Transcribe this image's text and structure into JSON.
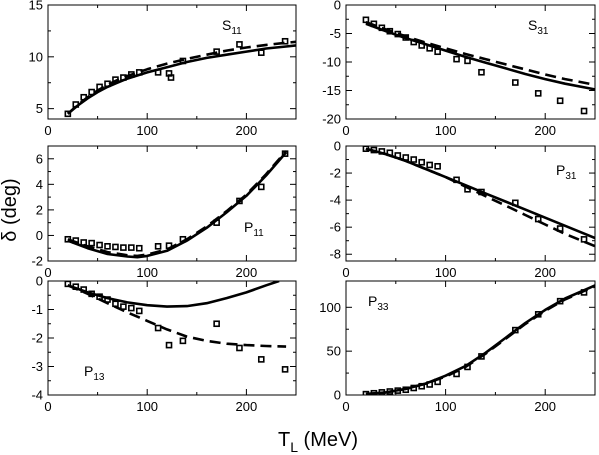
{
  "figure": {
    "xlabel_main": "T",
    "xlabel_sub": "L",
    "xlabel_units": " (MeV)",
    "ylabel": "δ (deg)"
  },
  "chart_data": [
    {
      "type": "line",
      "panel": "S11",
      "label_main": "S",
      "label_sub": "11",
      "xlim": [
        0,
        250
      ],
      "ylim": [
        4,
        15
      ],
      "xticks": [
        0,
        100,
        200
      ],
      "yticks": [
        5,
        10,
        15
      ],
      "ytick_labels": [
        "5",
        "10",
        "15"
      ],
      "series": [
        {
          "style": "solid",
          "x": [
            20,
            30,
            40,
            50,
            60,
            70,
            80,
            100,
            120,
            140,
            160,
            180,
            200,
            220,
            240,
            250
          ],
          "y": [
            4.5,
            5.3,
            6.0,
            6.6,
            7.1,
            7.5,
            7.9,
            8.5,
            9.0,
            9.5,
            9.9,
            10.2,
            10.5,
            10.8,
            11.0,
            11.1
          ]
        },
        {
          "style": "dashed",
          "x": [
            20,
            30,
            40,
            50,
            60,
            70,
            80,
            100,
            120,
            140,
            160,
            180,
            200,
            220,
            240,
            250
          ],
          "y": [
            4.5,
            5.35,
            6.1,
            6.75,
            7.3,
            7.75,
            8.15,
            8.8,
            9.35,
            9.8,
            10.2,
            10.6,
            10.9,
            11.15,
            11.35,
            11.45
          ]
        },
        {
          "style": "markers",
          "x": [
            20,
            28,
            36,
            44,
            52,
            60,
            68,
            76,
            84,
            92,
            111,
            122,
            124,
            136,
            170,
            193,
            215,
            239
          ],
          "y": [
            4.5,
            5.4,
            6.1,
            6.6,
            7.1,
            7.4,
            7.8,
            8.0,
            8.3,
            8.5,
            8.5,
            8.4,
            8.0,
            9.6,
            10.5,
            11.2,
            10.4,
            11.5
          ]
        }
      ]
    },
    {
      "type": "line",
      "panel": "S31",
      "label_main": "S",
      "label_sub": "31",
      "xlim": [
        0,
        250
      ],
      "ylim": [
        -20,
        0
      ],
      "xticks": [
        0,
        100,
        200
      ],
      "yticks": [
        0,
        -5,
        -10,
        -15,
        -20
      ],
      "ytick_labels": [
        "0",
        "-5",
        "-10",
        "-15",
        "-20"
      ],
      "series": [
        {
          "style": "solid",
          "x": [
            20,
            40,
            60,
            80,
            100,
            120,
            140,
            160,
            180,
            200,
            220,
            250
          ],
          "y": [
            -3.3,
            -4.6,
            -5.8,
            -6.9,
            -8.0,
            -9.1,
            -10.1,
            -11.1,
            -12.1,
            -13.0,
            -13.8,
            -14.8
          ]
        },
        {
          "style": "dashed",
          "x": [
            20,
            40,
            60,
            80,
            100,
            120,
            140,
            160,
            180,
            200,
            220,
            250
          ],
          "y": [
            -3.0,
            -4.3,
            -5.5,
            -6.6,
            -7.6,
            -8.6,
            -9.5,
            -10.4,
            -11.3,
            -12.2,
            -13.0,
            -14.0
          ]
        },
        {
          "style": "markers",
          "x": [
            20,
            28,
            36,
            44,
            52,
            60,
            68,
            76,
            84,
            92,
            111,
            122,
            136,
            170,
            193,
            215,
            239
          ],
          "y": [
            -2.6,
            -3.3,
            -4.0,
            -4.6,
            -5.1,
            -5.7,
            -6.5,
            -7.1,
            -7.6,
            -8.2,
            -9.5,
            -9.8,
            -11.8,
            -13.6,
            -15.5,
            -16.8,
            -18.6
          ]
        }
      ]
    },
    {
      "type": "line",
      "panel": "P11",
      "label_main": "P",
      "label_sub": "11",
      "xlim": [
        0,
        250
      ],
      "ylim": [
        -2,
        7
      ],
      "xticks": [
        0,
        100,
        200
      ],
      "yticks": [
        -2,
        0,
        2,
        4,
        6
      ],
      "ytick_labels": [
        "-2",
        "0",
        "2",
        "4",
        "6"
      ],
      "series": [
        {
          "style": "solid",
          "x": [
            20,
            40,
            60,
            80,
            90,
            100,
            120,
            140,
            160,
            180,
            200,
            220,
            240
          ],
          "y": [
            -0.4,
            -1.0,
            -1.45,
            -1.65,
            -1.7,
            -1.6,
            -1.2,
            -0.4,
            0.6,
            1.8,
            3.1,
            4.7,
            6.5
          ]
        },
        {
          "style": "dashed",
          "x": [
            20,
            40,
            60,
            80,
            90,
            100,
            120,
            140,
            160,
            180,
            200,
            220,
            240
          ],
          "y": [
            -0.3,
            -0.85,
            -1.3,
            -1.55,
            -1.6,
            -1.5,
            -1.1,
            -0.3,
            0.7,
            1.9,
            3.2,
            4.8,
            6.6
          ]
        },
        {
          "style": "markers",
          "x": [
            20,
            28,
            36,
            44,
            52,
            60,
            68,
            76,
            84,
            92,
            111,
            122,
            136,
            170,
            193,
            215,
            239
          ],
          "y": [
            -0.3,
            -0.4,
            -0.55,
            -0.6,
            -0.75,
            -0.85,
            -0.9,
            -0.95,
            -0.95,
            -1.0,
            -0.85,
            -0.8,
            -0.3,
            1.0,
            2.7,
            3.8,
            6.4
          ]
        }
      ]
    },
    {
      "type": "line",
      "panel": "P31",
      "label_main": "P",
      "label_sub": "31",
      "xlim": [
        0,
        250
      ],
      "ylim": [
        -8.5,
        0
      ],
      "xticks": [
        0,
        100,
        200
      ],
      "yticks": [
        0,
        -2,
        -4,
        -6,
        -8
      ],
      "ytick_labels": [
        "0",
        "-2",
        "-4",
        "-6",
        "-8"
      ],
      "series": [
        {
          "style": "solid",
          "x": [
            20,
            40,
            60,
            80,
            100,
            120,
            140,
            160,
            180,
            200,
            220,
            240,
            250
          ],
          "y": [
            -0.2,
            -0.6,
            -1.1,
            -1.7,
            -2.3,
            -2.9,
            -3.5,
            -4.1,
            -4.7,
            -5.3,
            -5.9,
            -6.5,
            -6.8
          ]
        },
        {
          "style": "dashed",
          "x": [
            20,
            40,
            60,
            80,
            100,
            120,
            140,
            160,
            180,
            200,
            220,
            240,
            250
          ],
          "y": [
            -0.2,
            -0.6,
            -1.1,
            -1.7,
            -2.3,
            -3.0,
            -3.7,
            -4.4,
            -5.1,
            -5.8,
            -6.5,
            -7.1,
            -7.4
          ]
        },
        {
          "style": "markers",
          "x": [
            20,
            28,
            36,
            44,
            52,
            60,
            68,
            76,
            84,
            92,
            111,
            122,
            136,
            170,
            193,
            215,
            239
          ],
          "y": [
            -0.2,
            -0.3,
            -0.4,
            -0.5,
            -0.7,
            -0.85,
            -1.0,
            -1.2,
            -1.4,
            -1.5,
            -2.5,
            -3.2,
            -3.4,
            -4.2,
            -5.4,
            -6.1,
            -6.9
          ]
        }
      ]
    },
    {
      "type": "line",
      "panel": "P13",
      "label_main": "P",
      "label_sub": "13",
      "xlim": [
        0,
        250
      ],
      "ylim": [
        -4,
        0
      ],
      "xticks": [
        0,
        100,
        200
      ],
      "yticks": [
        0,
        -1,
        -2,
        -3,
        -4
      ],
      "ytick_labels": [
        "0",
        "-1",
        "-2",
        "-3",
        "-4"
      ],
      "series": [
        {
          "style": "solid",
          "x": [
            20,
            40,
            60,
            80,
            100,
            120,
            140,
            160,
            180,
            200,
            220,
            233
          ],
          "y": [
            -0.15,
            -0.4,
            -0.6,
            -0.75,
            -0.85,
            -0.9,
            -0.88,
            -0.78,
            -0.6,
            -0.4,
            -0.15,
            0.0
          ]
        },
        {
          "style": "dashed",
          "x": [
            20,
            40,
            60,
            80,
            100,
            120,
            140,
            160,
            180,
            200,
            220,
            240
          ],
          "y": [
            -0.15,
            -0.45,
            -0.78,
            -1.1,
            -1.4,
            -1.7,
            -1.95,
            -2.1,
            -2.2,
            -2.25,
            -2.28,
            -2.3
          ]
        },
        {
          "style": "markers",
          "x": [
            20,
            28,
            36,
            44,
            52,
            60,
            68,
            76,
            84,
            92,
            111,
            122,
            136,
            170,
            193,
            215,
            239
          ],
          "y": [
            -0.1,
            -0.2,
            -0.3,
            -0.45,
            -0.55,
            -0.65,
            -0.8,
            -0.9,
            -0.95,
            -1.05,
            -1.65,
            -2.25,
            -2.1,
            -1.5,
            -2.35,
            -2.75,
            -3.1
          ]
        }
      ]
    },
    {
      "type": "line",
      "panel": "P33",
      "label_main": "P",
      "label_sub": "33",
      "xlim": [
        0,
        250
      ],
      "ylim": [
        0,
        130
      ],
      "xticks": [
        0,
        100,
        200
      ],
      "yticks": [
        0,
        50,
        100
      ],
      "ytick_labels": [
        "0",
        "50",
        "100"
      ],
      "series": [
        {
          "style": "solid",
          "x": [
            20,
            40,
            60,
            80,
            100,
            120,
            140,
            160,
            180,
            200,
            220,
            240,
            250
          ],
          "y": [
            1,
            3,
            7,
            13,
            22,
            33,
            48,
            65,
            82,
            97,
            110,
            120,
            125
          ]
        },
        {
          "style": "dashed",
          "x": [
            20,
            40,
            60,
            80,
            100,
            120,
            140,
            160,
            180,
            200,
            220,
            240,
            250
          ],
          "y": [
            1,
            3,
            7,
            13,
            21,
            32,
            47,
            64,
            81,
            96,
            109,
            119,
            124
          ]
        },
        {
          "style": "markers",
          "x": [
            20,
            28,
            36,
            44,
            52,
            60,
            68,
            76,
            84,
            92,
            111,
            122,
            136,
            170,
            193,
            215,
            239
          ],
          "y": [
            1,
            2,
            3,
            4,
            5,
            6,
            8,
            10,
            12,
            15,
            24,
            32,
            44,
            74,
            92,
            107,
            117
          ]
        }
      ]
    }
  ]
}
